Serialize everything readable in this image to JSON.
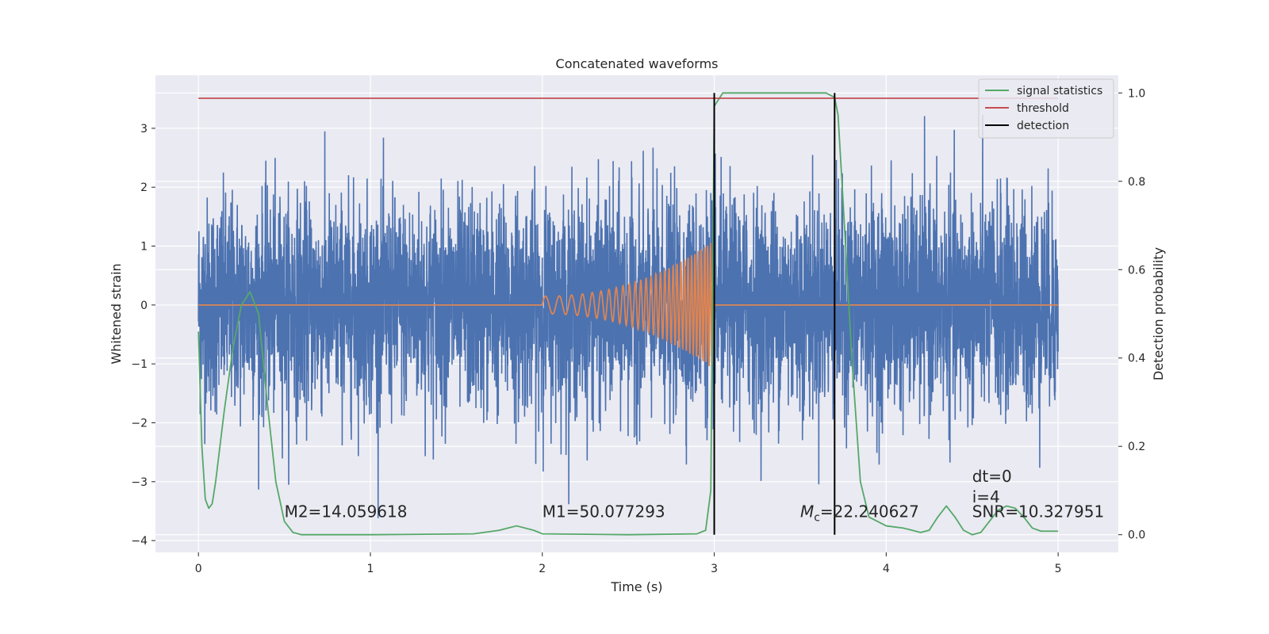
{
  "chart_data": {
    "type": "line",
    "title": "Concatenated waveforms",
    "xlabel": "Time (s)",
    "ylabel": "Whitened strain",
    "y2label": "Detection probability",
    "xlim": [
      -0.25,
      5.35
    ],
    "ylim": [
      -4.2,
      3.9
    ],
    "y2lim": [
      -0.04,
      1.04
    ],
    "x_ticks": [
      0,
      1,
      2,
      3,
      4,
      5
    ],
    "y_ticks": [
      -4,
      -3,
      -2,
      -1,
      0,
      1,
      2,
      3
    ],
    "y2_ticks": [
      0.0,
      0.2,
      0.4,
      0.6,
      0.8,
      1.0
    ],
    "x_tick_labels": [
      "0",
      "1",
      "2",
      "3",
      "4",
      "5"
    ],
    "y_tick_labels": [
      "−4",
      "−3",
      "−2",
      "−1",
      "0",
      "1",
      "2",
      "3"
    ],
    "y2_tick_labels": [
      "0.0",
      "0.2",
      "0.4",
      "0.6",
      "0.8",
      "1.0"
    ],
    "grid": true,
    "legend_position": "top-right",
    "series": [
      {
        "color": "#4c72b0",
        "axis": "left",
        "kind": "noise",
        "x_range": [
          0,
          5
        ],
        "approx_amplitude_std": 0.9,
        "approx_peak": 3.6
      },
      {
        "color": "#dd8452",
        "axis": "left",
        "kind": "chirp",
        "x_range": [
          0,
          5
        ],
        "chirp_start": 2.0,
        "chirp_end": 3.0,
        "amplitude_start": 0.15,
        "amplitude_end": 1.1
      },
      {
        "name": "signal statistics",
        "color": "#55a868",
        "axis": "right",
        "x": [
          0.0,
          0.02,
          0.04,
          0.06,
          0.08,
          0.1,
          0.15,
          0.2,
          0.25,
          0.3,
          0.35,
          0.4,
          0.45,
          0.5,
          0.55,
          0.6,
          1.0,
          1.6,
          1.75,
          1.85,
          1.95,
          2.0,
          2.5,
          2.9,
          2.95,
          2.98,
          3.0,
          3.05,
          3.5,
          3.65,
          3.7,
          3.72,
          3.75,
          3.8,
          3.85,
          3.9,
          4.0,
          4.1,
          4.2,
          4.25,
          4.3,
          4.35,
          4.4,
          4.45,
          4.5,
          4.55,
          4.6,
          4.65,
          4.7,
          4.75,
          4.8,
          4.85,
          4.9,
          5.0
        ],
        "y": [
          0.46,
          0.2,
          0.08,
          0.06,
          0.07,
          0.12,
          0.28,
          0.42,
          0.52,
          0.55,
          0.5,
          0.3,
          0.12,
          0.03,
          0.005,
          0.0,
          0.0,
          0.002,
          0.01,
          0.02,
          0.01,
          0.002,
          0.0,
          0.002,
          0.01,
          0.1,
          0.97,
          1.0,
          1.0,
          1.0,
          0.99,
          0.95,
          0.75,
          0.4,
          0.12,
          0.04,
          0.02,
          0.015,
          0.005,
          0.01,
          0.04,
          0.065,
          0.04,
          0.01,
          0.0,
          0.005,
          0.03,
          0.055,
          0.065,
          0.06,
          0.04,
          0.015,
          0.008,
          0.008
        ]
      },
      {
        "name": "threshold",
        "color": "#c44e52",
        "axis": "right",
        "x": [
          0,
          5
        ],
        "y": [
          0.988,
          0.988
        ]
      },
      {
        "name": "detection",
        "color": "#000000",
        "axis": "right",
        "kind": "vlines",
        "x": [
          3.0,
          3.7
        ],
        "y_range": [
          0.0,
          1.0
        ]
      }
    ],
    "annotations": [
      {
        "text": "M2=14.059618",
        "x": 0.5,
        "y": -3.6
      },
      {
        "text": "M1=50.077293",
        "x": 2.0,
        "y": -3.6
      },
      {
        "text_sym": "M",
        "text_sub": "c",
        "text_rest": "=22.240627",
        "x": 3.5,
        "y": -3.6
      },
      {
        "text": "dt=0",
        "x": 4.5,
        "y": -3.0
      },
      {
        "text": "i=4",
        "x": 4.5,
        "y": -3.35
      },
      {
        "text": "SNR=10.327951",
        "x": 4.5,
        "y": -3.6
      }
    ]
  }
}
